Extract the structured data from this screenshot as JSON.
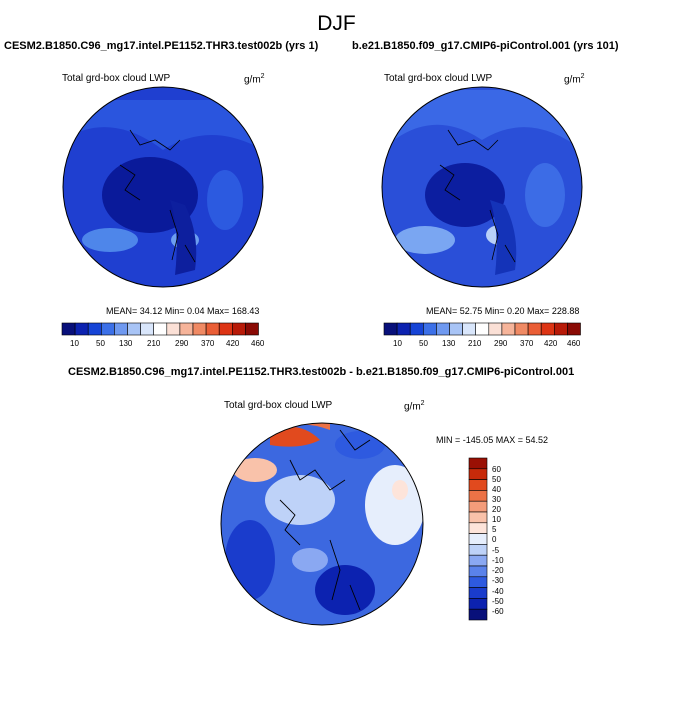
{
  "season": "DJF",
  "colors": {
    "abs_scale": [
      "#08107a",
      "#0c22b0",
      "#1644d6",
      "#3c70e8",
      "#6f99f0",
      "#a8c4f6",
      "#d9e6fb",
      "#ffffff",
      "#fbe0d6",
      "#f6b49a",
      "#f08a64",
      "#ea5e36",
      "#dd3414",
      "#b81a08",
      "#8a0a04"
    ],
    "diff_scale": [
      "#08107a",
      "#0c22b0",
      "#1a3ccc",
      "#2e5ae0",
      "#5a82ea",
      "#8aa8f2",
      "#bed2f8",
      "#e6eefc",
      "#fde4da",
      "#f9c2aa",
      "#f39c7a",
      "#ec7246",
      "#e14a1e",
      "#c82a0a",
      "#9a1004"
    ],
    "map_fill_a": "#1f3fd0",
    "map_fill_b": "#2a4fd8",
    "map_fill_diff": "#3c68e0"
  },
  "panels": [
    {
      "case_title": "CESM2.B1850.C96_mg17.intel.PE1152.THR3.test002b (yrs 1)",
      "var_label": "Total grd-box cloud LWP",
      "units_base": "g/m",
      "units_exp": "2",
      "stats": "MEAN=  34.12  Min=   0.04  Max= 168.43",
      "colorbar_labels": [
        "10",
        "50",
        "130",
        "210",
        "290",
        "370",
        "420",
        "460"
      ]
    },
    {
      "case_title": "b.e21.B1850.f09_g17.CMIP6-piControl.001 (yrs 101)",
      "var_label": "Total grd-box cloud LWP",
      "units_base": "g/m",
      "units_exp": "2",
      "stats": "MEAN=  52.75  Min=   0.20  Max= 228.88",
      "colorbar_labels": [
        "10",
        "50",
        "130",
        "210",
        "290",
        "370",
        "420",
        "460"
      ]
    }
  ],
  "diff": {
    "title": "CESM2.B1850.C96_mg17.intel.PE1152.THR3.test002b - b.e21.B1850.f09_g17.CMIP6-piControl.001",
    "var_label": "Total grd-box cloud LWP",
    "units_base": "g/m",
    "units_exp": "2",
    "stats": "MIN = -145.05 MAX =  54.52",
    "colorbar_labels": [
      "60",
      "50",
      "40",
      "30",
      "20",
      "10",
      "5",
      "0",
      "-5",
      "-10",
      "-20",
      "-30",
      "-40",
      "-50",
      "-60"
    ]
  },
  "chart_data": {
    "type": "heatmap",
    "title": "DJF",
    "panels": [
      {
        "case": "CESM2.B1850.C96_mg17.intel.PE1152.THR3.test002b (yrs 1)",
        "variable": "Total grd-box cloud LWP",
        "units": "g/m^2",
        "mean": 34.12,
        "min": 0.04,
        "max": 168.43,
        "contour_levels": [
          10,
          50,
          130,
          210,
          290,
          370,
          420,
          460
        ]
      },
      {
        "case": "b.e21.B1850.f09_g17.CMIP6-piControl.001 (yrs 101)",
        "variable": "Total grd-box cloud LWP",
        "units": "g/m^2",
        "mean": 52.75,
        "min": 0.2,
        "max": 228.88,
        "contour_levels": [
          10,
          50,
          130,
          210,
          290,
          370,
          420,
          460
        ]
      },
      {
        "case": "difference",
        "variable": "Total grd-box cloud LWP",
        "units": "g/m^2",
        "min": -145.05,
        "max": 54.52,
        "contour_levels": [
          -60,
          -50,
          -40,
          -30,
          -20,
          -10,
          -5,
          0,
          5,
          10,
          20,
          30,
          40,
          50,
          60
        ]
      }
    ]
  }
}
